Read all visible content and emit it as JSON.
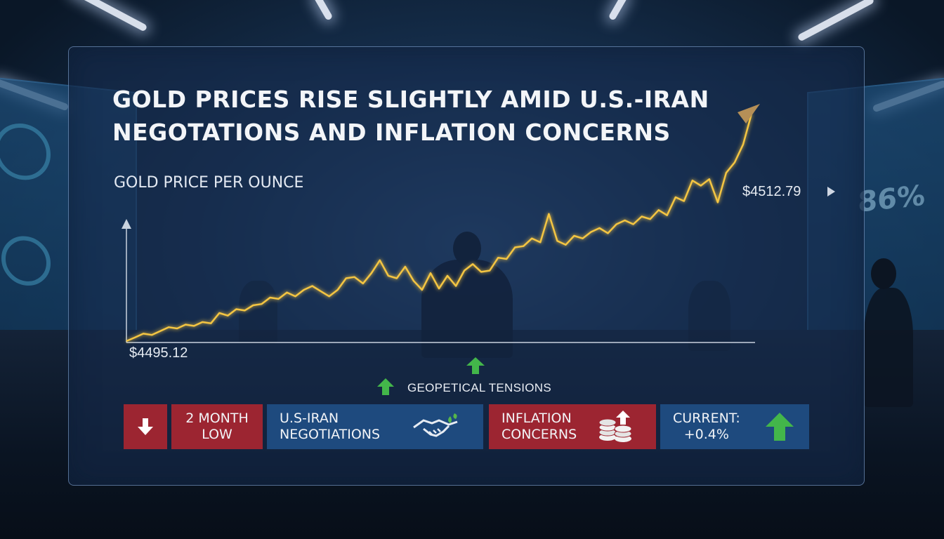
{
  "headline": "GOLD PRICES RISE SLIGHTLY AMID U.S.-IRAN NEGOTATIONS AND INFLATION CONCERNS",
  "colors": {
    "line": "#f4c542",
    "axis": "#c9d2de",
    "red_tile": "#9c2531",
    "blue_tile": "#1e4a7e",
    "up_arrow": "#43b64a"
  },
  "chart_data": {
    "type": "line",
    "ylabel": "GOLD PRICE PER OUNCE",
    "start_label": "$4495.12",
    "end_label": "$4512.79",
    "ylim": [
      4495.12,
      4512.79
    ],
    "series": [
      {
        "values": [
          4495.12,
          4495.4,
          4495.7,
          4495.6,
          4495.9,
          4496.2,
          4496.1,
          4496.4,
          4496.3,
          4496.6,
          4496.5,
          4497.3,
          4497.1,
          4497.6,
          4497.5,
          4497.9,
          4498.0,
          4498.5,
          4498.4,
          4498.9,
          4498.6,
          4499.1,
          4499.4,
          4499.0,
          4498.6,
          4499.1,
          4500.0,
          4500.1,
          4499.6,
          4500.4,
          4501.4,
          4500.2,
          4500.0,
          4500.9,
          4499.8,
          4499.1,
          4500.4,
          4499.2,
          4500.2,
          4499.4,
          4500.6,
          4501.1,
          4500.5,
          4500.6,
          4501.6,
          4501.5,
          4502.4,
          4502.5,
          4503.1,
          4502.8,
          4505.0,
          4502.9,
          4502.6,
          4503.3,
          4503.1,
          4503.6,
          4503.9,
          4503.5,
          4504.2,
          4504.5,
          4504.2,
          4504.8,
          4504.6,
          4505.3,
          4504.9,
          4506.3,
          4506.0,
          4507.6,
          4507.2,
          4507.7,
          4505.9,
          4508.2,
          4509.0,
          4510.4,
          4512.79
        ]
      }
    ],
    "annotations": [
      {
        "label": "GEOPETICAL TENSIONS",
        "direction": "up"
      }
    ]
  },
  "status_bar": [
    {
      "icon": "down-arrow-icon",
      "text": ""
    },
    {
      "text": "2 MONTH\nLOW"
    },
    {
      "text": "U.S-IRAN\nNEGOTIATIONS",
      "icon": "handshake-icon"
    },
    {
      "text": "INFLATION\nCONCERNS",
      "icon": "coin-stack-up-icon"
    },
    {
      "text": "CURRENT:\n+0.4%",
      "icon": "up-arrow-icon"
    }
  ],
  "background": {
    "side_screen_text": "86%"
  }
}
